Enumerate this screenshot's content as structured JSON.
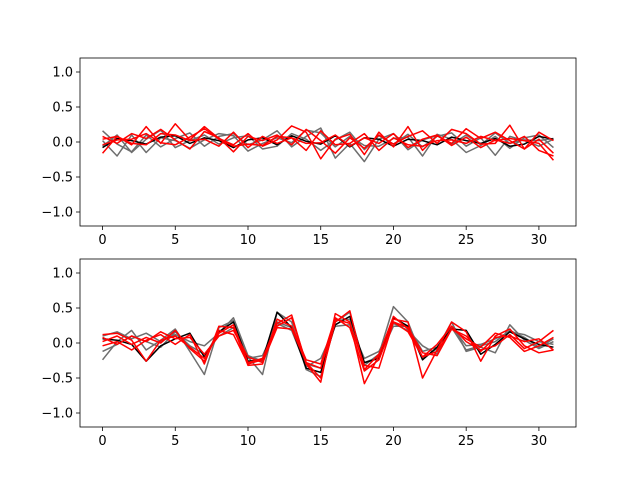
{
  "chart_data": [
    {
      "type": "line",
      "title": "",
      "xlabel": "",
      "ylabel": "",
      "xlim": [
        -1.55,
        32.55
      ],
      "ylim": [
        -1.2,
        1.2
      ],
      "xticks": [
        "0",
        "5",
        "10",
        "15",
        "20",
        "25",
        "30"
      ],
      "yticks": [
        "−1.0",
        "−0.5",
        "0.0",
        "0.5",
        "1.0"
      ],
      "grid": false,
      "x": [
        0,
        1,
        2,
        3,
        4,
        5,
        6,
        7,
        8,
        9,
        10,
        11,
        12,
        13,
        14,
        15,
        16,
        17,
        18,
        19,
        20,
        21,
        22,
        23,
        24,
        25,
        26,
        27,
        28,
        29,
        30,
        31
      ],
      "series": [
        {
          "color": "#6e6e6e",
          "values": [
            0.16,
            -0.03,
            -0.14,
            0.1,
            -0.07,
            0.05,
            0.13,
            -0.06,
            0.08,
            0.12,
            -0.04,
            0.03,
            0.16,
            -0.07,
            0.08,
            0.2,
            -0.23,
            -0.02,
            -0.28,
            0.04,
            0.12,
            -0.11,
            0.03,
            0.09,
            -0.03,
            0.1,
            -0.04,
            0.13,
            -0.02,
            0.03,
            0.02,
            0.05
          ]
        },
        {
          "color": "#6e6e6e",
          "values": [
            0.02,
            -0.2,
            0.1,
            -0.15,
            0.06,
            0.02,
            -0.09,
            0.03,
            0.12,
            0.09,
            -0.13,
            -0.02,
            0.06,
            -0.01,
            0.17,
            0.13,
            -0.07,
            0.08,
            -0.05,
            -0.06,
            0.05,
            0.07,
            -0.2,
            0.11,
            0.04,
            -0.15,
            -0.05,
            0.08,
            -0.09,
            0.06,
            0.1,
            -0.08
          ]
        },
        {
          "color": "#6e6e6e",
          "values": [
            -0.06,
            0.1,
            -0.15,
            0.04,
            0.17,
            -0.08,
            0.02,
            0.1,
            -0.03,
            0.06,
            0.09,
            -0.1,
            -0.06,
            0.12,
            0.04,
            -0.12,
            0.03,
            0.14,
            -0.11,
            0.09,
            -0.03,
            0.11,
            -0.07,
            0.08,
            0.13,
            -0.06,
            0.06,
            -0.19,
            0.08,
            0.02,
            -0.06,
            0.04
          ]
        },
        {
          "color": "#000000",
          "values": [
            -0.08,
            0.05,
            0.02,
            -0.03,
            0.07,
            0.09,
            -0.02,
            0.06,
            0.02,
            -0.08,
            0.03,
            0.06,
            -0.04,
            0.09,
            0.01,
            -0.03,
            0.09,
            -0.07,
            0.06,
            0.04,
            -0.06,
            0.04,
            0.02,
            -0.04,
            0.07,
            0.02,
            -0.02,
            0.05,
            -0.06,
            -0.03,
            0.08,
            0.04
          ]
        },
        {
          "color": "#ff0000",
          "values": [
            -0.16,
            0.08,
            -0.04,
            0.22,
            -0.02,
            0.26,
            0.03,
            0.22,
            0.05,
            -0.04,
            0.12,
            -0.06,
            0.03,
            0.23,
            0.14,
            -0.24,
            0.04,
            0.11,
            -0.18,
            0.14,
            -0.07,
            0.22,
            -0.12,
            0.09,
            -0.02,
            0.19,
            0.05,
            0.14,
            0.02,
            -0.1,
            0.14,
            0.02
          ]
        },
        {
          "color": "#ff0000",
          "values": [
            0.08,
            -0.02,
            0.12,
            0.05,
            0.18,
            0.03,
            -0.1,
            0.15,
            0.06,
            -0.14,
            0.08,
            0.02,
            0.1,
            -0.04,
            0.18,
            0.02,
            -0.16,
            0.06,
            -0.09,
            0.1,
            -0.03,
            0.08,
            0.16,
            -0.02,
            0.18,
            0.12,
            -0.03,
            -0.02,
            0.24,
            -0.1,
            0.04,
            -0.16
          ]
        },
        {
          "color": "#ff0000",
          "values": [
            0.04,
            0.08,
            -0.02,
            -0.04,
            0.12,
            0.1,
            0.02,
            0.04,
            -0.06,
            0.14,
            -0.08,
            0.08,
            -0.02,
            0.06,
            -0.12,
            0.16,
            -0.04,
            -0.02,
            0.12,
            -0.12,
            0.06,
            -0.04,
            -0.06,
            0.02,
            0.03,
            -0.02,
            0.08,
            0.02,
            0.05,
            0.02,
            -0.02,
            -0.26
          ]
        },
        {
          "color": "#ff0000",
          "values": [
            -0.04,
            0.03,
            0.04,
            0.12,
            -0.01,
            -0.04,
            0.07,
            0.19,
            0.04,
            -0.06,
            -0.03,
            -0.05,
            0.08,
            0.06,
            -0.02,
            -0.01,
            0.1,
            -0.06,
            0.06,
            -0.02,
            0.12,
            -0.08,
            0.04,
            0.1,
            -0.05,
            0.07,
            -0.08,
            0.03,
            -0.02,
            0.08,
            -0.12,
            -0.2
          ]
        }
      ]
    },
    {
      "type": "line",
      "title": "",
      "xlabel": "",
      "ylabel": "",
      "xlim": [
        -1.55,
        32.55
      ],
      "ylim": [
        -1.2,
        1.2
      ],
      "xticks": [
        "0",
        "5",
        "10",
        "15",
        "20",
        "25",
        "30"
      ],
      "yticks": [
        "−1.0",
        "−0.5",
        "0.0",
        "0.5",
        "1.0"
      ],
      "grid": false,
      "x": [
        0,
        1,
        2,
        3,
        4,
        5,
        6,
        7,
        8,
        9,
        10,
        11,
        12,
        13,
        14,
        15,
        16,
        17,
        18,
        19,
        20,
        21,
        22,
        23,
        24,
        25,
        26,
        27,
        28,
        29,
        30,
        31
      ],
      "series": [
        {
          "color": "#6e6e6e",
          "values": [
            -0.24,
            0.02,
            0.18,
            -0.1,
            0.04,
            0.2,
            -0.12,
            -0.45,
            0.22,
            0.32,
            -0.2,
            -0.45,
            0.44,
            0.3,
            -0.38,
            -0.48,
            0.3,
            0.44,
            -0.32,
            -0.16,
            0.52,
            0.3,
            -0.22,
            -0.08,
            0.3,
            -0.12,
            -0.06,
            -0.14,
            0.26,
            0.04,
            -0.08,
            0.02
          ]
        },
        {
          "color": "#6e6e6e",
          "values": [
            0.1,
            0.16,
            0.06,
            0.14,
            0.02,
            0.12,
            0.02,
            -0.04,
            0.14,
            0.36,
            -0.18,
            -0.26,
            0.3,
            0.22,
            -0.3,
            -0.36,
            0.32,
            0.34,
            -0.28,
            -0.2,
            0.24,
            0.24,
            -0.12,
            -0.06,
            0.22,
            -0.1,
            -0.04,
            0.02,
            0.18,
            0.08,
            -0.06,
            0.06
          ]
        },
        {
          "color": "#6e6e6e",
          "values": [
            -0.12,
            -0.02,
            0.1,
            0.02,
            -0.06,
            0.16,
            -0.04,
            -0.16,
            0.1,
            0.22,
            -0.22,
            -0.18,
            0.28,
            0.18,
            -0.34,
            -0.22,
            0.24,
            0.26,
            -0.22,
            -0.12,
            0.28,
            0.18,
            -0.04,
            -0.16,
            0.24,
            -0.04,
            -0.02,
            0.06,
            0.16,
            0.12,
            0.02,
            -0.02
          ]
        },
        {
          "color": "#000000",
          "values": [
            0.06,
            0.04,
            -0.02,
            -0.26,
            -0.04,
            0.06,
            0.14,
            -0.2,
            0.16,
            0.3,
            -0.26,
            -0.24,
            0.44,
            0.22,
            -0.36,
            -0.42,
            0.26,
            0.38,
            -0.28,
            -0.22,
            0.36,
            0.24,
            -0.24,
            -0.06,
            0.2,
            0.18,
            -0.16,
            -0.02,
            0.16,
            0.06,
            -0.02,
            -0.06
          ]
        },
        {
          "color": "#ff0000",
          "values": [
            0.12,
            0.14,
            0.04,
            -0.26,
            0.04,
            0.1,
            -0.06,
            -0.22,
            0.14,
            0.26,
            -0.28,
            -0.22,
            0.28,
            0.4,
            -0.3,
            -0.56,
            0.42,
            0.3,
            -0.58,
            -0.18,
            0.38,
            0.2,
            -0.2,
            -0.02,
            0.24,
            0.02,
            -0.1,
            -0.04,
            0.12,
            -0.08,
            0.02,
            0.18
          ]
        },
        {
          "color": "#ff0000",
          "values": [
            0.02,
            0.1,
            -0.02,
            0.08,
            0.0,
            0.18,
            -0.08,
            -0.26,
            0.18,
            0.12,
            -0.3,
            -0.24,
            0.24,
            0.36,
            -0.28,
            -0.5,
            0.3,
            0.46,
            -0.38,
            -0.16,
            0.34,
            0.3,
            -0.5,
            -0.1,
            0.3,
            0.16,
            -0.26,
            0.1,
            0.2,
            -0.04,
            -0.14,
            -0.1
          ]
        },
        {
          "color": "#ff0000",
          "values": [
            -0.04,
            0.02,
            -0.1,
            0.04,
            0.12,
            -0.02,
            0.12,
            -0.3,
            0.24,
            0.22,
            -0.32,
            -0.3,
            0.34,
            0.24,
            -0.24,
            -0.3,
            0.36,
            0.22,
            -0.4,
            -0.24,
            0.3,
            0.22,
            -0.14,
            -0.18,
            0.2,
            0.06,
            -0.06,
            0.14,
            0.08,
            -0.12,
            -0.04,
            0.08
          ]
        },
        {
          "color": "#ff0000",
          "values": [
            0.08,
            -0.02,
            0.1,
            0.02,
            0.16,
            0.06,
            0.08,
            -0.16,
            0.1,
            0.18,
            -0.2,
            -0.28,
            0.22,
            0.2,
            -0.28,
            -0.36,
            0.34,
            0.28,
            -0.32,
            -0.36,
            0.3,
            0.16,
            -0.2,
            -0.12,
            0.2,
            0.1,
            -0.12,
            0.08,
            0.1,
            0.02,
            0.06,
            -0.1
          ]
        }
      ]
    }
  ]
}
